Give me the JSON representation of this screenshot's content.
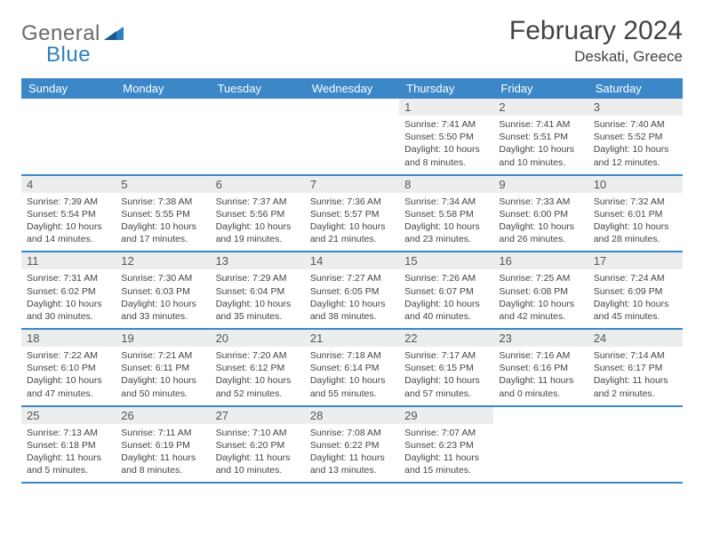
{
  "brand": {
    "general": "General",
    "blue": "Blue"
  },
  "header": {
    "title": "February 2024",
    "location": "Deskati, Greece"
  },
  "colors": {
    "header_bar": "#3b87c8",
    "daynum_bg": "#eceded",
    "text": "#444444",
    "brand_gray": "#6a6a6a",
    "brand_blue": "#2f7fbf"
  },
  "dow": [
    "Sunday",
    "Monday",
    "Tuesday",
    "Wednesday",
    "Thursday",
    "Friday",
    "Saturday"
  ],
  "weeks": [
    [
      null,
      null,
      null,
      null,
      {
        "n": "1",
        "sr": "7:41 AM",
        "ss": "5:50 PM",
        "dl": "10 hours and 8 minutes."
      },
      {
        "n": "2",
        "sr": "7:41 AM",
        "ss": "5:51 PM",
        "dl": "10 hours and 10 minutes."
      },
      {
        "n": "3",
        "sr": "7:40 AM",
        "ss": "5:52 PM",
        "dl": "10 hours and 12 minutes."
      }
    ],
    [
      {
        "n": "4",
        "sr": "7:39 AM",
        "ss": "5:54 PM",
        "dl": "10 hours and 14 minutes."
      },
      {
        "n": "5",
        "sr": "7:38 AM",
        "ss": "5:55 PM",
        "dl": "10 hours and 17 minutes."
      },
      {
        "n": "6",
        "sr": "7:37 AM",
        "ss": "5:56 PM",
        "dl": "10 hours and 19 minutes."
      },
      {
        "n": "7",
        "sr": "7:36 AM",
        "ss": "5:57 PM",
        "dl": "10 hours and 21 minutes."
      },
      {
        "n": "8",
        "sr": "7:34 AM",
        "ss": "5:58 PM",
        "dl": "10 hours and 23 minutes."
      },
      {
        "n": "9",
        "sr": "7:33 AM",
        "ss": "6:00 PM",
        "dl": "10 hours and 26 minutes."
      },
      {
        "n": "10",
        "sr": "7:32 AM",
        "ss": "6:01 PM",
        "dl": "10 hours and 28 minutes."
      }
    ],
    [
      {
        "n": "11",
        "sr": "7:31 AM",
        "ss": "6:02 PM",
        "dl": "10 hours and 30 minutes."
      },
      {
        "n": "12",
        "sr": "7:30 AM",
        "ss": "6:03 PM",
        "dl": "10 hours and 33 minutes."
      },
      {
        "n": "13",
        "sr": "7:29 AM",
        "ss": "6:04 PM",
        "dl": "10 hours and 35 minutes."
      },
      {
        "n": "14",
        "sr": "7:27 AM",
        "ss": "6:05 PM",
        "dl": "10 hours and 38 minutes."
      },
      {
        "n": "15",
        "sr": "7:26 AM",
        "ss": "6:07 PM",
        "dl": "10 hours and 40 minutes."
      },
      {
        "n": "16",
        "sr": "7:25 AM",
        "ss": "6:08 PM",
        "dl": "10 hours and 42 minutes."
      },
      {
        "n": "17",
        "sr": "7:24 AM",
        "ss": "6:09 PM",
        "dl": "10 hours and 45 minutes."
      }
    ],
    [
      {
        "n": "18",
        "sr": "7:22 AM",
        "ss": "6:10 PM",
        "dl": "10 hours and 47 minutes."
      },
      {
        "n": "19",
        "sr": "7:21 AM",
        "ss": "6:11 PM",
        "dl": "10 hours and 50 minutes."
      },
      {
        "n": "20",
        "sr": "7:20 AM",
        "ss": "6:12 PM",
        "dl": "10 hours and 52 minutes."
      },
      {
        "n": "21",
        "sr": "7:18 AM",
        "ss": "6:14 PM",
        "dl": "10 hours and 55 minutes."
      },
      {
        "n": "22",
        "sr": "7:17 AM",
        "ss": "6:15 PM",
        "dl": "10 hours and 57 minutes."
      },
      {
        "n": "23",
        "sr": "7:16 AM",
        "ss": "6:16 PM",
        "dl": "11 hours and 0 minutes."
      },
      {
        "n": "24",
        "sr": "7:14 AM",
        "ss": "6:17 PM",
        "dl": "11 hours and 2 minutes."
      }
    ],
    [
      {
        "n": "25",
        "sr": "7:13 AM",
        "ss": "6:18 PM",
        "dl": "11 hours and 5 minutes."
      },
      {
        "n": "26",
        "sr": "7:11 AM",
        "ss": "6:19 PM",
        "dl": "11 hours and 8 minutes."
      },
      {
        "n": "27",
        "sr": "7:10 AM",
        "ss": "6:20 PM",
        "dl": "11 hours and 10 minutes."
      },
      {
        "n": "28",
        "sr": "7:08 AM",
        "ss": "6:22 PM",
        "dl": "11 hours and 13 minutes."
      },
      {
        "n": "29",
        "sr": "7:07 AM",
        "ss": "6:23 PM",
        "dl": "11 hours and 15 minutes."
      },
      null,
      null
    ]
  ],
  "labels": {
    "sunrise": "Sunrise:",
    "sunset": "Sunset:",
    "daylight": "Daylight:"
  }
}
